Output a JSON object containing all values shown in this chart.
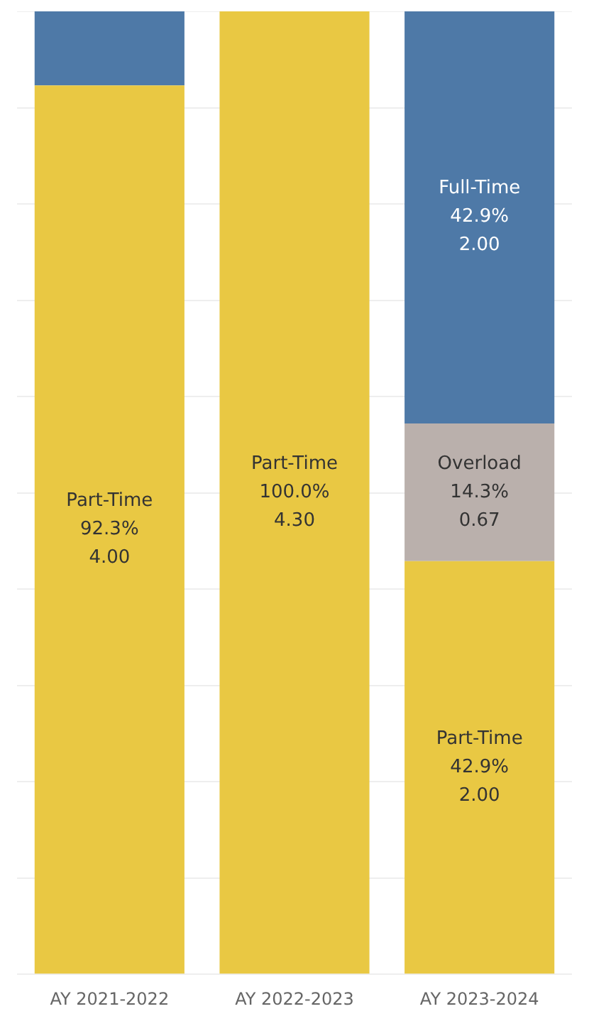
{
  "chart_data": {
    "type": "bar",
    "stacked": true,
    "categories": [
      "AY 2021-2022",
      "AY 2022-2023",
      "AY 2023-2024"
    ],
    "series": [
      {
        "name": "Part-Time",
        "color": "#e9c843",
        "values": [
          92.3,
          100.0,
          42.9
        ],
        "value_labels": [
          "92.3%\n4.00",
          "100.0%\n4.30",
          "42.9%\n2.00"
        ]
      },
      {
        "name": "Overload",
        "color": "#bab0ac",
        "values": [
          0,
          0,
          14.3
        ],
        "value_labels": [
          null,
          null,
          "14.3%\n0.67"
        ]
      },
      {
        "name": "Full-Time",
        "color": "#4e79a7",
        "values": [
          7.7,
          0,
          42.9
        ],
        "value_labels": [
          null,
          null,
          "42.9%\n2.00"
        ]
      }
    ],
    "ylim": [
      0,
      100
    ],
    "yticks": [
      {
        "value": 0,
        "label": null
      },
      {
        "value": 10,
        "label": null
      },
      {
        "value": 20,
        "label": null
      },
      {
        "value": 30,
        "label": null
      },
      {
        "value": 40,
        "label": null
      },
      {
        "value": 50,
        "label": null
      },
      {
        "value": 60,
        "label": null
      },
      {
        "value": 70,
        "label": null
      },
      {
        "value": 80,
        "label": null
      },
      {
        "value": 90,
        "label": null
      },
      {
        "value": 100,
        "label": null
      }
    ],
    "grid": "y",
    "legend": false,
    "tick_labels": "x"
  }
}
